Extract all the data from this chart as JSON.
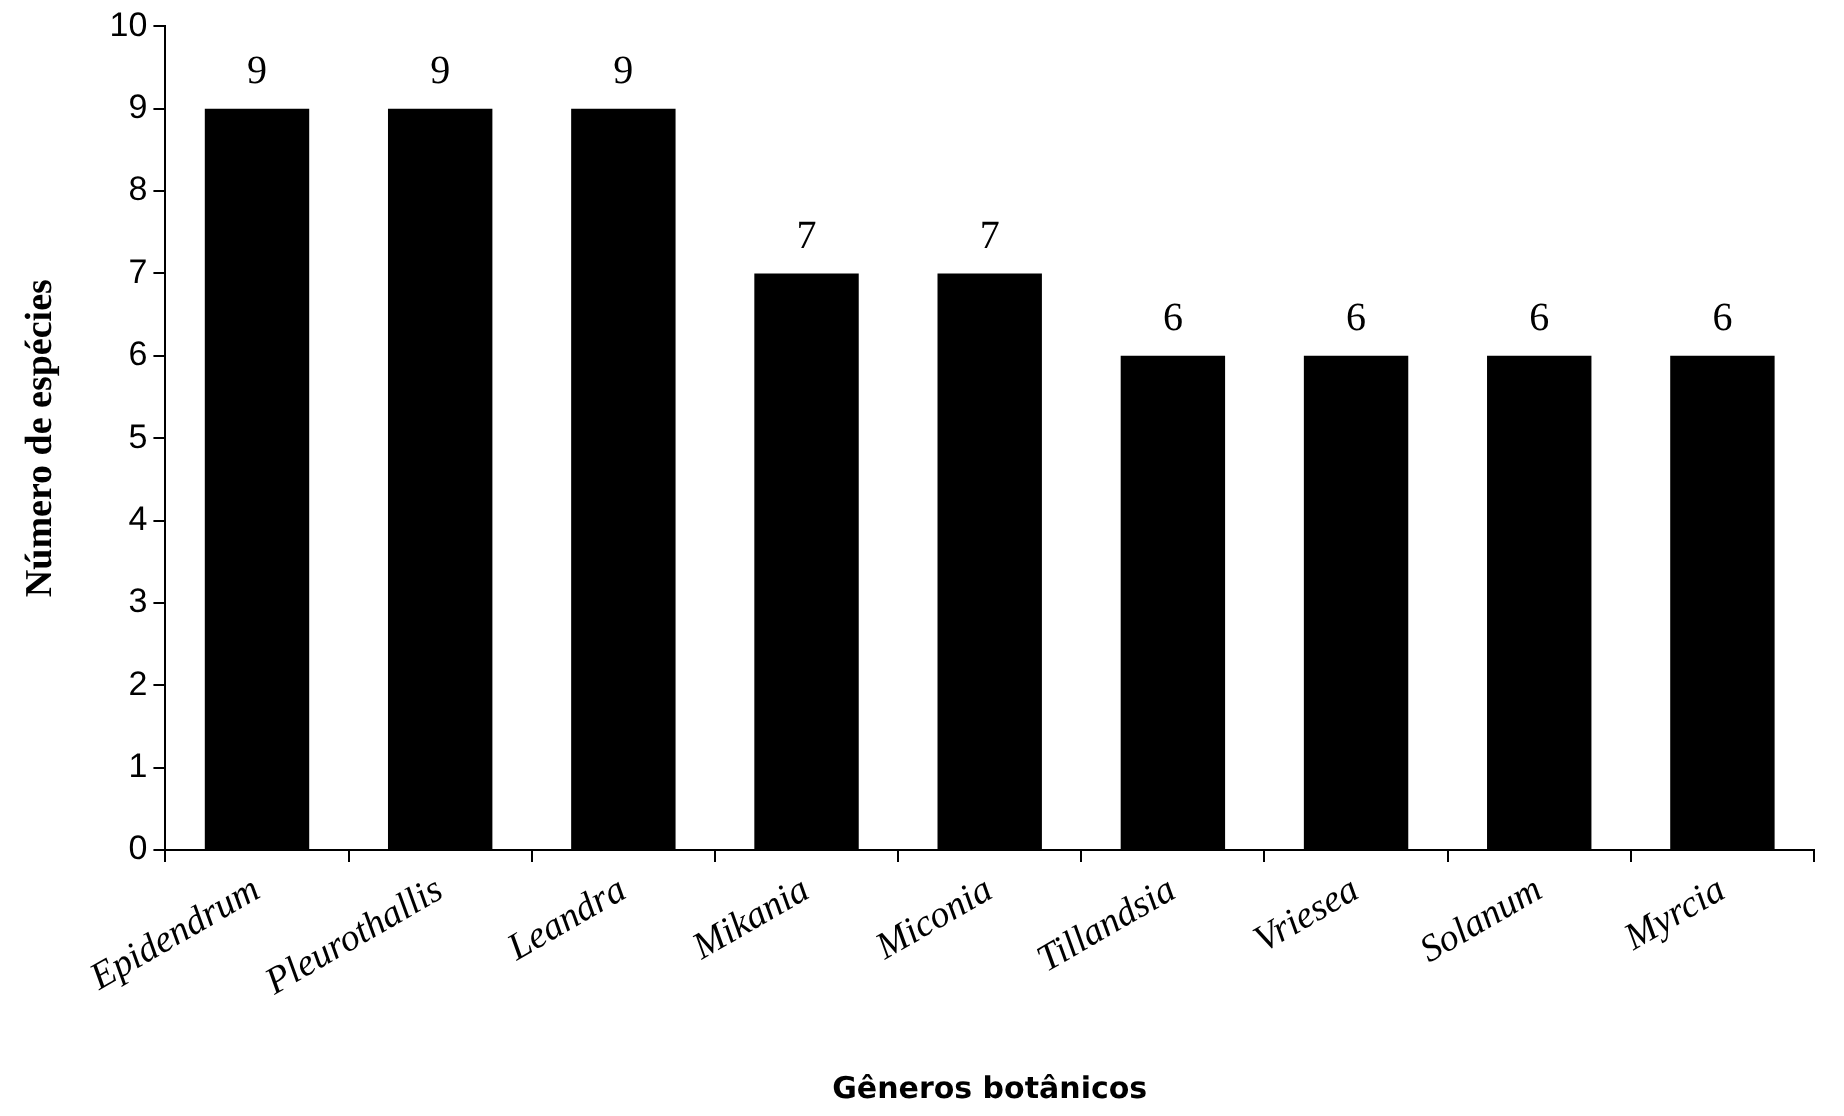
{
  "chart_data": {
    "type": "bar",
    "xlabel": "Gêneros botânicos",
    "ylabel": "Número de espécies",
    "categories": [
      "Epidendrum",
      "Pleurothallis",
      "Leandra",
      "Mikania",
      "Miconia",
      "Tillandsia",
      "Vriesea",
      "Solanum",
      "Myrcia"
    ],
    "values": [
      9,
      9,
      9,
      7,
      7,
      6,
      6,
      6,
      6
    ],
    "color": "#000000",
    "ylim": [
      0,
      10
    ],
    "yticks": [
      0,
      1,
      2,
      3,
      4,
      5,
      6,
      7,
      8,
      9,
      10
    ],
    "grid": false,
    "legend": false,
    "data_labels": true
  }
}
